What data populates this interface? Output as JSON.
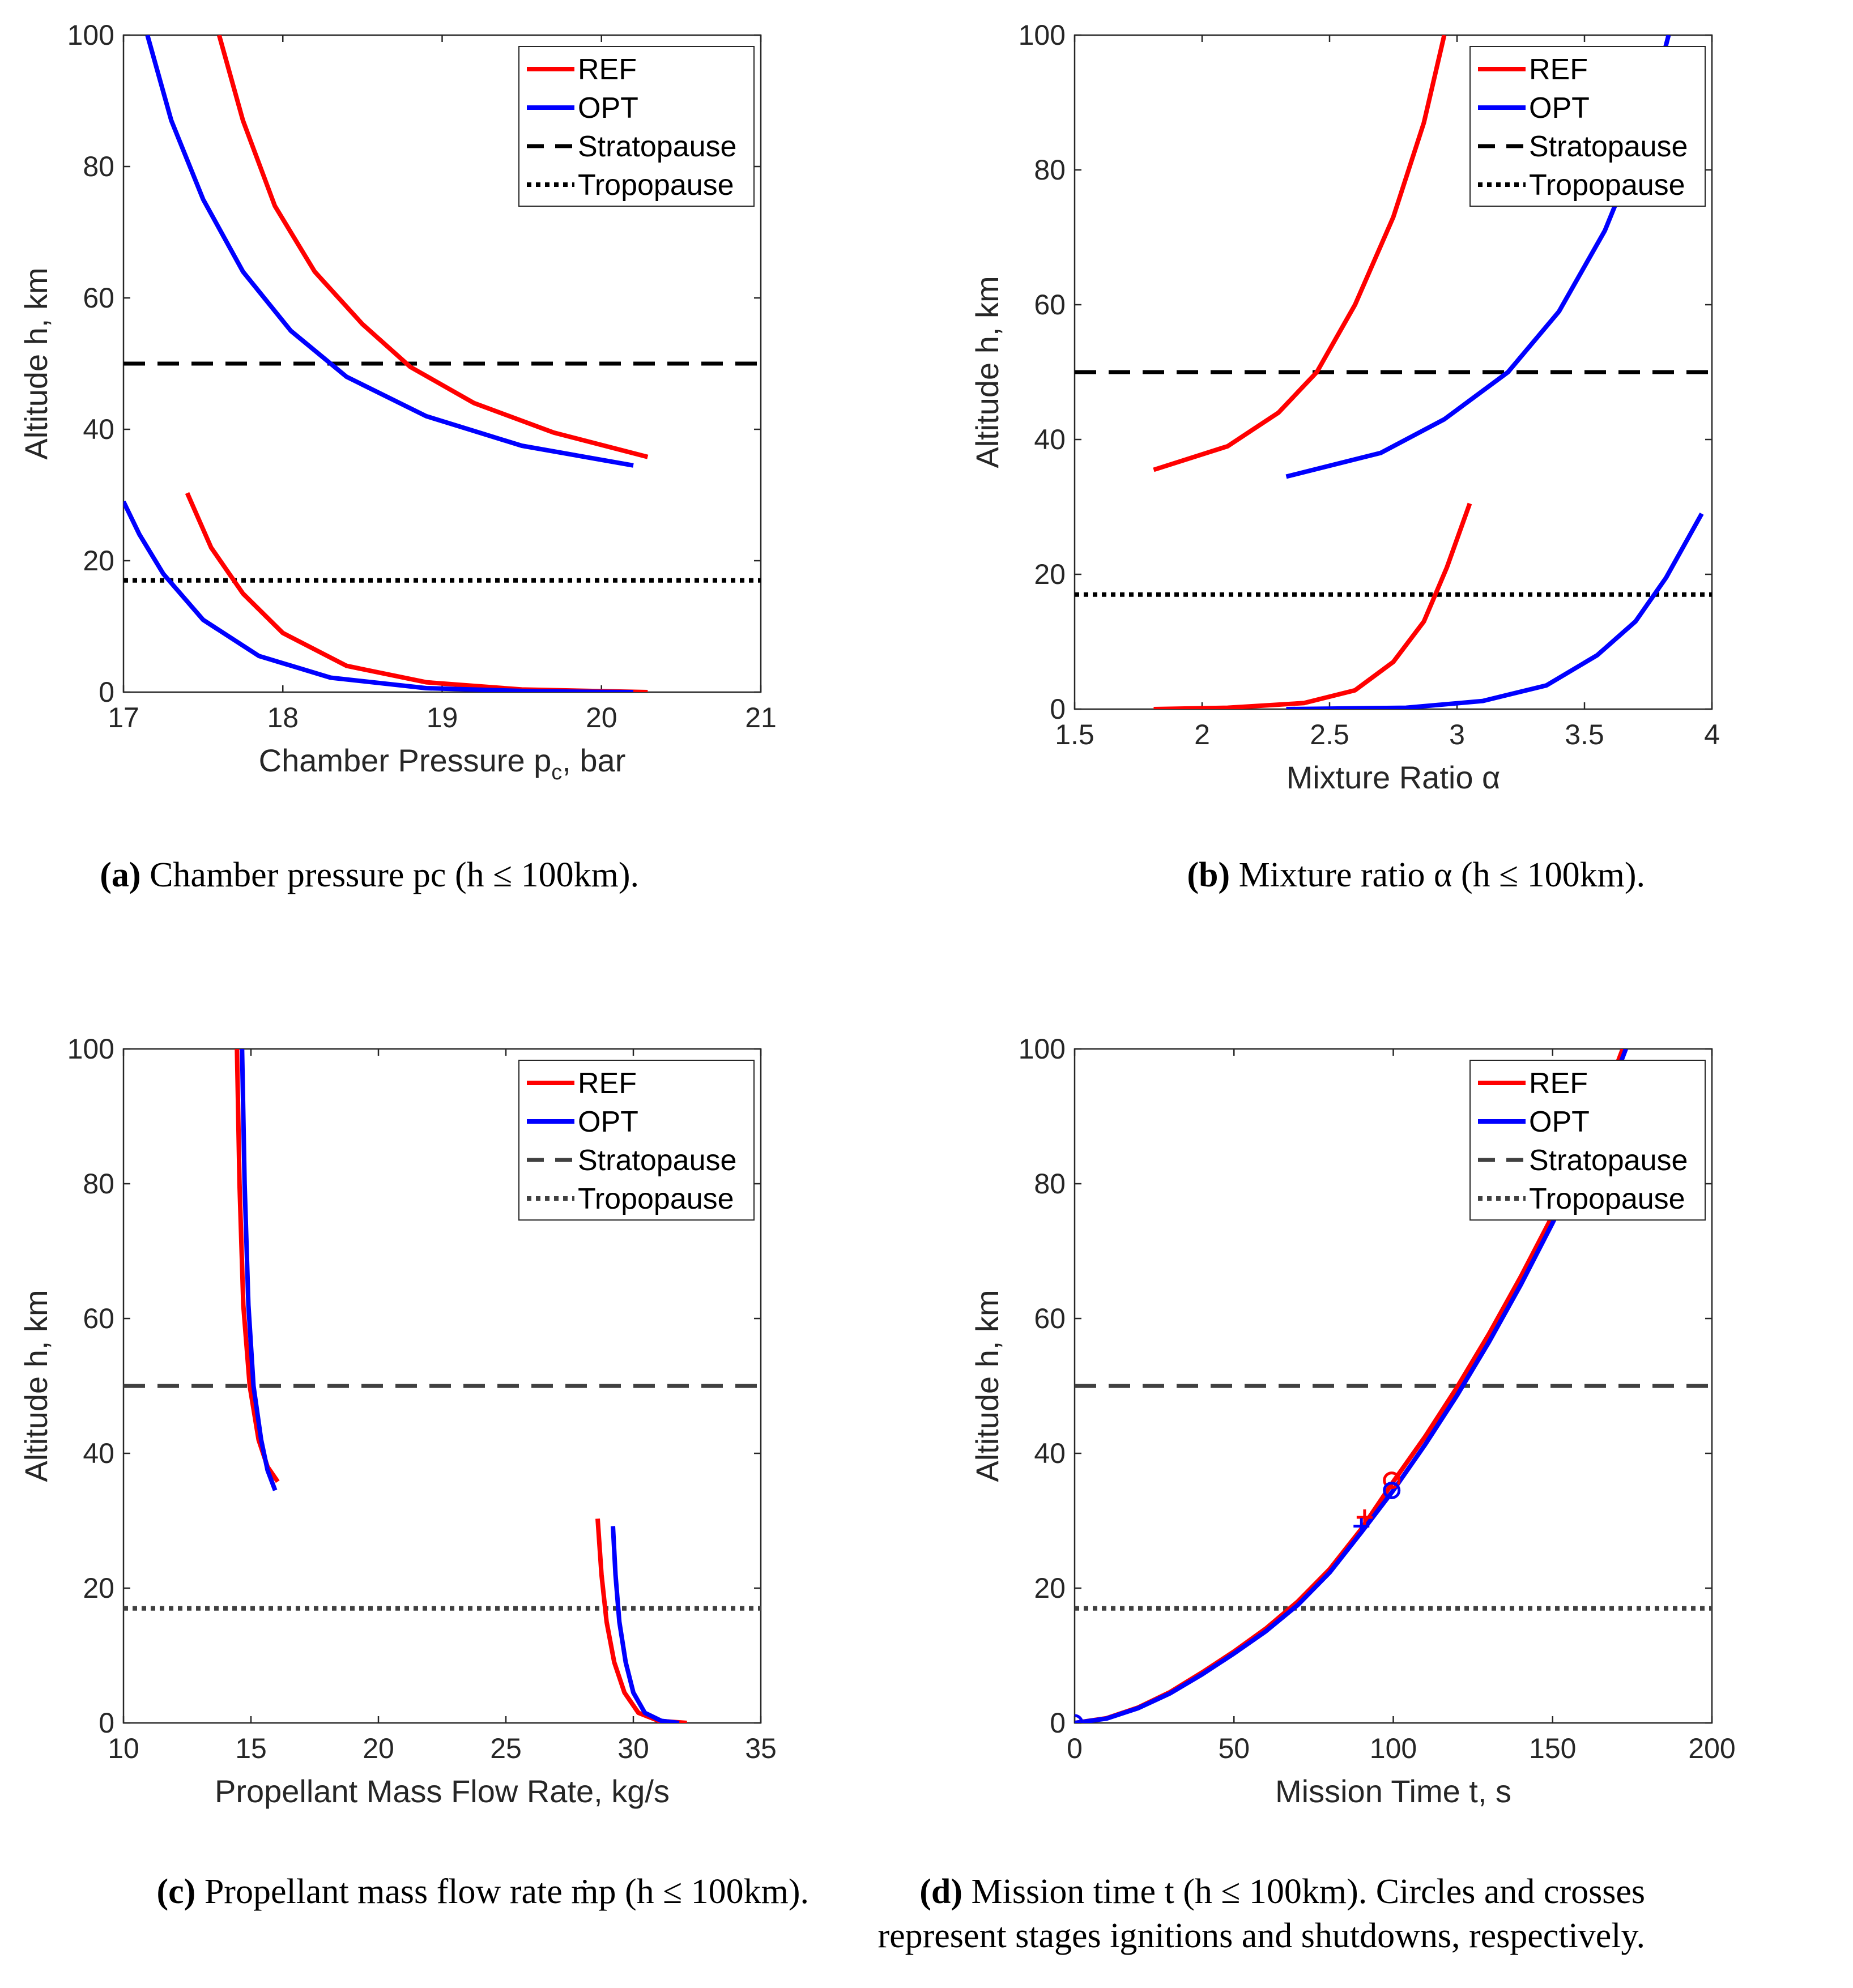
{
  "chart_data": [
    {
      "type": "line",
      "panel": "a",
      "xlabel": "Chamber Pressure  p",
      "xlabel_sub": "c",
      "xlabel_unit": ", bar",
      "ylabel": "Altitude  h, km",
      "xlim": [
        17,
        21
      ],
      "ylim": [
        0,
        100
      ],
      "xticks": [
        17,
        18,
        19,
        20,
        21
      ],
      "yticks": [
        0,
        20,
        40,
        60,
        80,
        100
      ],
      "legend_loc": "top-right",
      "legend": [
        "REF",
        "OPT",
        "Stratopause",
        "Tropopause"
      ],
      "hlines": [
        {
          "name": "Stratopause",
          "y": 50,
          "style": "dashed"
        },
        {
          "name": "Tropopause",
          "y": 17,
          "style": "dotted"
        }
      ],
      "series": [
        {
          "name": "REF",
          "color": "#ff0000",
          "segments": [
            [
              [
                17.4,
                30.3
              ],
              [
                17.55,
                22
              ],
              [
                17.75,
                15
              ],
              [
                18.0,
                9
              ],
              [
                18.4,
                4
              ],
              [
                18.9,
                1.5
              ],
              [
                19.5,
                0.4
              ],
              [
                20.29,
                0
              ]
            ],
            [
              [
                17.6,
                100
              ],
              [
                17.75,
                87
              ],
              [
                17.95,
                74
              ],
              [
                18.2,
                64
              ],
              [
                18.5,
                56
              ],
              [
                18.8,
                49.5
              ],
              [
                19.2,
                44
              ],
              [
                19.7,
                39.5
              ],
              [
                20.29,
                35.8
              ]
            ]
          ]
        },
        {
          "name": "OPT",
          "color": "#0000ff",
          "segments": [
            [
              [
                17.0,
                29
              ],
              [
                17.1,
                24
              ],
              [
                17.25,
                18
              ],
              [
                17.5,
                11
              ],
              [
                17.85,
                5.5
              ],
              [
                18.3,
                2.2
              ],
              [
                18.9,
                0.6
              ],
              [
                19.6,
                0.1
              ],
              [
                20.2,
                0
              ]
            ],
            [
              [
                17.15,
                100
              ],
              [
                17.3,
                87
              ],
              [
                17.5,
                75
              ],
              [
                17.75,
                64
              ],
              [
                18.05,
                55
              ],
              [
                18.4,
                48
              ],
              [
                18.9,
                42
              ],
              [
                19.5,
                37.5
              ],
              [
                20.2,
                34.5
              ]
            ]
          ]
        }
      ],
      "caption_label": "(a)",
      "caption": "Chamber pressure pc (h ≤ 100km)."
    },
    {
      "type": "line",
      "panel": "b",
      "xlabel": "Mixture Ratio  α",
      "ylabel": "Altitude  h, km",
      "xlim": [
        1.5,
        4
      ],
      "ylim": [
        0,
        100
      ],
      "xticks": [
        1.5,
        2,
        2.5,
        3,
        3.5,
        4
      ],
      "yticks": [
        0,
        20,
        40,
        60,
        80,
        100
      ],
      "legend_loc": "top-right",
      "legend": [
        "REF",
        "OPT",
        "Stratopause",
        "Tropopause"
      ],
      "hlines": [
        {
          "name": "Stratopause",
          "y": 50,
          "style": "dashed"
        },
        {
          "name": "Tropopause",
          "y": 17,
          "style": "dotted"
        }
      ],
      "series": [
        {
          "name": "REF",
          "color": "#ff0000",
          "segments": [
            [
              [
                1.81,
                0
              ],
              [
                2.1,
                0.2
              ],
              [
                2.4,
                0.9
              ],
              [
                2.6,
                2.8
              ],
              [
                2.75,
                7
              ],
              [
                2.87,
                13
              ],
              [
                2.96,
                21
              ],
              [
                3.05,
                30.5
              ]
            ],
            [
              [
                1.81,
                35.5
              ],
              [
                2.1,
                39
              ],
              [
                2.3,
                44
              ],
              [
                2.45,
                50
              ],
              [
                2.6,
                60
              ],
              [
                2.75,
                73
              ],
              [
                2.87,
                87
              ],
              [
                2.95,
                100
              ]
            ]
          ]
        },
        {
          "name": "OPT",
          "color": "#0000ff",
          "segments": [
            [
              [
                2.33,
                0
              ],
              [
                2.8,
                0.2
              ],
              [
                3.1,
                1.2
              ],
              [
                3.35,
                3.5
              ],
              [
                3.55,
                8
              ],
              [
                3.7,
                13
              ],
              [
                3.82,
                19.5
              ],
              [
                3.96,
                29
              ]
            ],
            [
              [
                2.33,
                34.5
              ],
              [
                2.7,
                38
              ],
              [
                2.95,
                43
              ],
              [
                3.2,
                50
              ],
              [
                3.4,
                59
              ],
              [
                3.58,
                71
              ],
              [
                3.72,
                84
              ],
              [
                3.83,
                100
              ]
            ]
          ]
        }
      ],
      "caption_label": "(b)",
      "caption": "Mixture ratio α (h ≤ 100km)."
    },
    {
      "type": "line",
      "panel": "c",
      "xlabel": "Propellant Mass Flow Rate, kg/s",
      "ylabel": "Altitude  h, km",
      "xlim": [
        10,
        35
      ],
      "ylim": [
        0,
        100
      ],
      "xticks": [
        10,
        15,
        20,
        25,
        30,
        35
      ],
      "yticks": [
        0,
        20,
        40,
        60,
        80,
        100
      ],
      "legend_loc": "top-right",
      "legend": [
        "REF",
        "OPT",
        "Stratopause",
        "Tropopause"
      ],
      "hlines": [
        {
          "name": "Stratopause",
          "y": 50,
          "style": "dashed"
        },
        {
          "name": "Tropopause",
          "y": 17,
          "style": "dotted"
        }
      ],
      "series": [
        {
          "name": "REF",
          "color": "#ff0000",
          "segments": [
            [
              [
                28.6,
                30.3
              ],
              [
                28.75,
                22
              ],
              [
                28.95,
                15
              ],
              [
                29.25,
                9
              ],
              [
                29.65,
                4.5
              ],
              [
                30.2,
                1.5
              ],
              [
                31.0,
                0.3
              ],
              [
                32.1,
                0
              ]
            ],
            [
              [
                14.45,
                100
              ],
              [
                14.55,
                80
              ],
              [
                14.7,
                62
              ],
              [
                14.95,
                50
              ],
              [
                15.3,
                42
              ],
              [
                15.65,
                38
              ],
              [
                16.05,
                35.8
              ]
            ]
          ]
        },
        {
          "name": "OPT",
          "color": "#0000ff",
          "segments": [
            [
              [
                29.2,
                29.2
              ],
              [
                29.3,
                22
              ],
              [
                29.45,
                15
              ],
              [
                29.7,
                9
              ],
              [
                30.0,
                4.5
              ],
              [
                30.45,
                1.5
              ],
              [
                31.1,
                0.3
              ],
              [
                31.8,
                0
              ]
            ],
            [
              [
                14.65,
                100
              ],
              [
                14.75,
                80
              ],
              [
                14.9,
                62
              ],
              [
                15.1,
                50
              ],
              [
                15.4,
                42
              ],
              [
                15.65,
                37.5
              ],
              [
                15.95,
                34.5
              ]
            ]
          ]
        }
      ],
      "caption_label": "(c)",
      "caption": "Propellant mass flow rate ṁp (h ≤ 100km)."
    },
    {
      "type": "line",
      "panel": "d",
      "xlabel": "Mission Time  t, s",
      "ylabel": "Altitude  h, km",
      "xlim": [
        0,
        200
      ],
      "ylim": [
        0,
        100
      ],
      "xticks": [
        0,
        50,
        100,
        150,
        200
      ],
      "yticks": [
        0,
        20,
        40,
        60,
        80,
        100
      ],
      "legend_loc": "top-right",
      "legend": [
        "REF",
        "OPT",
        "Stratopause",
        "Tropopause"
      ],
      "hlines": [
        {
          "name": "Stratopause",
          "y": 50,
          "style": "dashed"
        },
        {
          "name": "Tropopause",
          "y": 17,
          "style": "dotted"
        }
      ],
      "series": [
        {
          "name": "REF",
          "color": "#ff0000",
          "segments": [
            [
              [
                0,
                0
              ],
              [
                10,
                0.7
              ],
              [
                20,
                2.3
              ],
              [
                30,
                4.6
              ],
              [
                40,
                7.5
              ],
              [
                50,
                10.6
              ],
              [
                60,
                14.0
              ],
              [
                70,
                18.0
              ],
              [
                80,
                22.8
              ],
              [
                90,
                28.8
              ],
              [
                100,
                35.8
              ],
              [
                110,
                42.5
              ],
              [
                120,
                49.8
              ],
              [
                130,
                57.7
              ],
              [
                140,
                66.2
              ],
              [
                150,
                75.3
              ],
              [
                160,
                85.0
              ],
              [
                172,
                100
              ]
            ]
          ]
        },
        {
          "name": "OPT",
          "color": "#0000ff",
          "segments": [
            [
              [
                0,
                0
              ],
              [
                10,
                0.65
              ],
              [
                20,
                2.2
              ],
              [
                30,
                4.4
              ],
              [
                40,
                7.2
              ],
              [
                50,
                10.3
              ],
              [
                60,
                13.6
              ],
              [
                70,
                17.5
              ],
              [
                80,
                22.3
              ],
              [
                90,
                28.3
              ],
              [
                100,
                34.5
              ],
              [
                110,
                41.3
              ],
              [
                120,
                48.6
              ],
              [
                130,
                56.5
              ],
              [
                140,
                65.0
              ],
              [
                150,
                74.2
              ],
              [
                160,
                84.0
              ],
              [
                173,
                100
              ]
            ]
          ]
        }
      ],
      "markers": [
        {
          "series": "REF",
          "kind": "circle",
          "x": 0,
          "y": 0
        },
        {
          "series": "OPT",
          "kind": "circle",
          "x": 0,
          "y": 0
        },
        {
          "series": "REF",
          "kind": "cross",
          "x": 91,
          "y": 30.5
        },
        {
          "series": "OPT",
          "kind": "cross",
          "x": 90,
          "y": 29.2
        },
        {
          "series": "REF",
          "kind": "circle",
          "x": 99.5,
          "y": 36
        },
        {
          "series": "OPT",
          "kind": "circle",
          "x": 99.5,
          "y": 34.5
        }
      ],
      "caption_label": "(d)",
      "caption": "Mission time t (h ≤ 100km).  Circles and crosses",
      "caption_line2": "represent stages ignitions and shutdowns, respectively."
    }
  ],
  "colors": {
    "ref": "#ff0000",
    "opt": "#0000ff",
    "stratopause_dark": "#000000",
    "stratopause_gray": "#404040",
    "axis": "#262626"
  }
}
